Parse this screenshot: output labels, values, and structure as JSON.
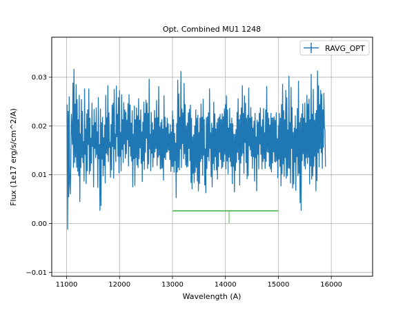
{
  "chart_data": {
    "type": "line",
    "title": "Opt. Combined MU1 1248",
    "xlabel": "Wavelength (A)",
    "ylabel": "Flux (1e17 erg/s/cm^2/A)",
    "xlim": [
      10720,
      16780
    ],
    "ylim": [
      -0.0108,
      0.0382
    ],
    "x_ticks": [
      11000,
      12000,
      13000,
      14000,
      15000,
      16000
    ],
    "y_ticks": [
      -0.01,
      0.0,
      0.01,
      0.02,
      0.03
    ],
    "x_tick_labels": [
      "11000",
      "12000",
      "13000",
      "14000",
      "15000",
      "16000"
    ],
    "y_tick_labels": [
      "−0.01",
      "0.00",
      "0.01",
      "0.02",
      "0.03"
    ],
    "grid": true,
    "legend_position": "top-right",
    "series": [
      {
        "name": "RAVG_OPT",
        "color": "#1f77b4",
        "style": "errorbar-line",
        "x_start": 11010,
        "x_step": 10,
        "values": [
          0.0244,
          -0.0012,
          0.023,
          0.0055,
          0.026,
          0.008,
          0.0061,
          0.0118,
          0.0224,
          0.0196,
          0.0162,
          0.0288,
          0.0115,
          0.0316,
          0.0125,
          0.0245,
          0.0136,
          0.0285,
          0.0115,
          0.0254,
          0.0107,
          0.0213,
          0.0098,
          0.0263,
          0.0045,
          0.0184,
          0.0115,
          0.0254,
          0.0135,
          0.023,
          0.0125,
          0.0168,
          0.0087,
          0.0276,
          0.0142,
          0.0194,
          0.0082,
          0.0225,
          0.0108,
          0.0233,
          0.0162,
          0.0276,
          0.0102,
          0.0216,
          0.0108,
          0.0175,
          0.0124,
          0.0247,
          0.0158,
          0.0201,
          0.0075,
          0.0234,
          0.0154,
          0.0207,
          0.0135,
          0.0237,
          0.0142,
          0.0188,
          0.0074,
          0.0258,
          0.0133,
          0.0162,
          0.0027,
          0.0235,
          0.0037,
          0.0207,
          0.0132,
          0.0218,
          0.0098,
          0.0176,
          0.0119,
          0.0202,
          0.0083,
          0.0263,
          0.0144,
          0.0217,
          0.0141,
          0.0283,
          0.0127,
          0.0227,
          0.0156,
          0.0167,
          0.0095,
          0.0203,
          0.011,
          0.0243,
          0.0158,
          0.0247,
          0.0093,
          0.0275,
          0.0153,
          0.0183,
          0.0127,
          0.0282,
          0.0178,
          0.0224,
          0.0138,
          0.0258,
          0.0104,
          0.0273,
          0.0138,
          0.0187,
          0.0108,
          0.0264,
          0.0152,
          0.0213,
          0.0125,
          0.0248,
          0.0163,
          0.0233,
          0.0134,
          0.0228,
          0.0143,
          0.0212,
          0.0172,
          0.0246,
          0.0118,
          0.0264,
          0.0158,
          0.0243,
          0.0138,
          0.0206,
          0.0128,
          0.0231,
          0.0075,
          0.0183,
          0.0133,
          0.0241,
          0.0078,
          0.0213,
          0.0135,
          0.0237,
          0.012,
          0.0221,
          0.0115,
          0.0256,
          0.0133,
          0.0212,
          0.0155,
          0.0233,
          0.0123,
          0.0188,
          0.0086,
          0.0208,
          0.0128,
          0.0249,
          0.0111,
          0.0226,
          0.0146,
          0.0253,
          0.0175,
          0.0247,
          0.0113,
          0.0226,
          0.0122,
          0.0296,
          0.0153,
          0.0183,
          0.0108,
          0.0228,
          0.0144,
          0.0207,
          0.0116,
          0.0192,
          0.0135,
          0.0232,
          0.0147,
          0.0216,
          0.0154,
          0.0252,
          0.0119,
          0.0217,
          0.0136,
          0.0281,
          0.014,
          0.0198,
          0.0112,
          0.0207,
          0.0113,
          0.0213,
          0.0114,
          0.0194,
          0.0089,
          0.0262,
          0.0135,
          0.0218,
          0.0131,
          0.0197,
          0.0146,
          0.0216,
          0.0147,
          0.0205,
          0.0151,
          0.0184,
          0.0131,
          0.0203,
          0.0107,
          0.0188,
          0.0117,
          0.0231,
          0.0117,
          0.0213,
          0.0105,
          0.0185,
          0.0129,
          0.0165,
          0.0053,
          0.0205,
          0.0106,
          0.0294,
          0.0115,
          0.0266,
          0.011,
          0.0218,
          0.0153,
          0.0312,
          0.0115,
          0.0235,
          0.0164,
          0.0227,
          0.0133,
          0.0287,
          0.0143,
          0.0244,
          0.012,
          0.02,
          0.0116,
          0.0206,
          0.0117,
          0.0227,
          0.0154,
          0.0234,
          0.0129,
          0.0243,
          0.0084,
          0.0216,
          0.0071,
          0.0178,
          0.0103,
          0.0182,
          0.0084,
          0.02,
          0.0105,
          0.0233,
          0.0115,
          0.0216,
          0.0087,
          0.0222,
          0.0067,
          0.0187,
          0.0082,
          0.0216,
          0.0127,
          0.0245,
          0.0133,
          0.0218,
          0.0099,
          0.0255,
          0.014,
          0.0213,
          0.0079,
          0.0153,
          0.0063,
          0.0217,
          0.0113,
          0.0219,
          0.0137,
          0.0227,
          0.0128,
          0.0276,
          0.0154,
          0.0186,
          0.0096,
          0.0206,
          0.0075,
          0.0196,
          0.0123,
          0.0249,
          0.011,
          0.0225,
          0.0137,
          0.0194,
          0.011,
          0.0207,
          0.0091,
          0.0215,
          0.0117,
          0.0218,
          0.0146,
          0.0224,
          0.0131,
          0.0213,
          0.0113,
          0.0225,
          0.0116,
          0.0219,
          0.0127,
          0.0235,
          0.0142,
          0.0244,
          0.0112,
          0.0262,
          0.0128,
          0.0233,
          0.0102,
          0.0196,
          0.0136,
          0.0236,
          0.0127,
          0.0205,
          0.0117,
          0.0216,
          0.0082,
          0.0205,
          0.0117,
          0.0183,
          0.0065,
          0.0183,
          0.0109,
          0.0193,
          0.0125,
          0.0228,
          0.0146,
          0.0256,
          0.0131,
          0.0213,
          0.0079,
          0.0223,
          0.0124,
          0.0237,
          0.0139,
          0.0283,
          0.0144,
          0.0226,
          0.0103,
          0.0262,
          0.0166,
          0.0247,
          0.0125,
          0.0216,
          0.0092,
          0.0222,
          0.0098,
          0.0278,
          0.0159,
          0.0216,
          0.0151,
          0.0238,
          0.0138,
          0.0218,
          0.0113,
          0.0196,
          0.0137,
          0.021,
          0.0087,
          0.0226,
          0.0135,
          0.0178,
          0.0067,
          0.0212,
          0.0142,
          0.0208,
          0.0112,
          0.0226,
          0.0163,
          0.0237,
          0.0142,
          0.0198,
          0.0112,
          0.0213,
          0.0127,
          0.0236,
          0.0133,
          0.0186,
          0.0113,
          0.0233,
          0.0127,
          0.0281,
          0.0147,
          0.0227,
          0.0146,
          0.0216,
          0.0117,
          0.0202,
          0.0112,
          0.0226,
          0.0106,
          0.0217,
          0.0124,
          0.0216,
          0.0147,
          0.0219,
          0.0127,
          0.0212,
          0.0126,
          0.0227,
          0.0129,
          0.0174,
          0.0094,
          0.0201,
          0.0132,
          0.0226,
          0.0117,
          0.0216,
          0.0077,
          0.0244,
          0.0102,
          0.0286,
          0.0122,
          0.0231,
          0.0097,
          0.0213,
          0.0135,
          0.0273,
          0.0093,
          0.0258,
          0.0098,
          0.0192,
          0.0114,
          0.0302,
          0.0113,
          0.0207,
          0.0083,
          0.0279,
          0.0154,
          0.0238,
          0.0073,
          0.0187,
          0.0081,
          0.0196,
          0.0126,
          0.0221,
          0.0068,
          0.0194,
          0.0137,
          0.0236,
          0.0098,
          0.0292,
          0.0103,
          0.0207,
          0.0043,
          0.0216,
          0.0027,
          0.0225,
          0.0129,
          0.0245,
          0.0143,
          0.0216,
          0.0118,
          0.0247,
          0.0112,
          0.0206,
          0.0135,
          0.0263,
          0.0123,
          0.0245,
          0.0136,
          0.0255,
          0.0081,
          0.0213,
          0.0118,
          0.0306,
          0.0091,
          0.0224,
          0.0098,
          0.0275,
          0.0117,
          0.0212,
          0.0138,
          0.0226,
          0.0067,
          0.0232,
          0.0088,
          0.0313,
          0.0145,
          0.0283,
          0.0116,
          0.0244,
          0.0154,
          0.0273,
          0.0145,
          0.0265,
          0.0113,
          0.0233,
          0.0156,
          0.0267,
          0.0196,
          0.0193,
          0.0117
        ]
      },
      {
        "name": "",
        "color": "#6abf69",
        "style": "segment",
        "x": [
          13000,
          15000
        ],
        "values": [
          0.0026,
          0.0026
        ]
      }
    ],
    "green_dips": [
      {
        "x": 14070,
        "y": 0.0001
      },
      {
        "x": 14570,
        "y": 0.0026
      }
    ],
    "legend": [
      {
        "label": "RAVG_OPT",
        "color": "#1f77b4"
      }
    ]
  }
}
